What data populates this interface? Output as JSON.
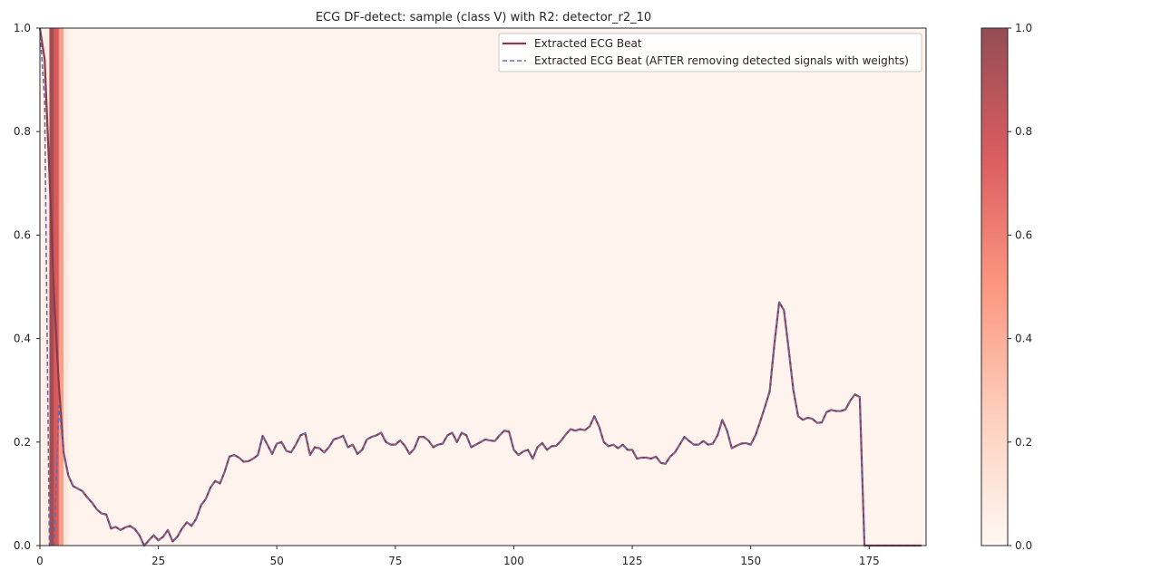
{
  "chart_data": {
    "type": "line",
    "title": "ECG DF-detect: sample (class V) with R2: detector_r2_10",
    "xlabel": "",
    "ylabel": "",
    "xlim": [
      0,
      187
    ],
    "ylim": [
      0,
      1
    ],
    "grid": false,
    "legend_position": "top-right",
    "x_ticks": [
      0,
      25,
      50,
      75,
      100,
      125,
      150,
      175
    ],
    "x_tick_labels": [
      "0",
      "25",
      "50",
      "75",
      "100",
      "125",
      "150",
      "175"
    ],
    "y_ticks": [
      0,
      0.2,
      0.4,
      0.6,
      0.8,
      1.0
    ],
    "y_tick_labels": [
      "0.0",
      "0.2",
      "0.4",
      "0.6",
      "0.8",
      "1.0"
    ],
    "series": [
      {
        "name": "Extracted ECG Beat",
        "style": "solid",
        "color": "#8b3a4a",
        "x": [
          0,
          1,
          2,
          3,
          4,
          5,
          6,
          7,
          8,
          9,
          10,
          11,
          12,
          13,
          14,
          15,
          16,
          17,
          18,
          19,
          20,
          21,
          22,
          23,
          24,
          25,
          26,
          27,
          28,
          29,
          30,
          31,
          32,
          33,
          34,
          35,
          36,
          37,
          38,
          39,
          40,
          41,
          42,
          43,
          44,
          45,
          46,
          47,
          48,
          49,
          50,
          51,
          52,
          53,
          54,
          55,
          56,
          57,
          58,
          59,
          60,
          61,
          62,
          63,
          64,
          65,
          66,
          67,
          68,
          69,
          70,
          71,
          72,
          73,
          74,
          75,
          76,
          77,
          78,
          79,
          80,
          81,
          82,
          83,
          84,
          85,
          86,
          87,
          88,
          89,
          90,
          91,
          92,
          93,
          94,
          95,
          96,
          97,
          98,
          99,
          100,
          101,
          102,
          103,
          104,
          105,
          106,
          107,
          108,
          109,
          110,
          111,
          112,
          113,
          114,
          115,
          116,
          117,
          118,
          119,
          120,
          121,
          122,
          123,
          124,
          125,
          126,
          127,
          128,
          129,
          130,
          131,
          132,
          133,
          134,
          135,
          136,
          137,
          138,
          139,
          140,
          141,
          142,
          143,
          144,
          145,
          146,
          147,
          148,
          149,
          150,
          151,
          152,
          153,
          154,
          155,
          156,
          157,
          158,
          159,
          160,
          161,
          162,
          163,
          164,
          165,
          166,
          167,
          168,
          169,
          170,
          171,
          172,
          173,
          174,
          175,
          176,
          177,
          178,
          179,
          180,
          181,
          182,
          183,
          184,
          185,
          186
        ],
        "y": [
          1.0,
          0.94,
          0.72,
          0.48,
          0.31,
          0.18,
          0.135,
          0.115,
          0.11,
          0.105,
          0.093,
          0.083,
          0.07,
          0.062,
          0.06,
          0.033,
          0.036,
          0.03,
          0.035,
          0.038,
          0.032,
          0.02,
          0.0,
          0.01,
          0.02,
          0.01,
          0.017,
          0.03,
          0.008,
          0.017,
          0.033,
          0.045,
          0.038,
          0.052,
          0.078,
          0.09,
          0.112,
          0.125,
          0.12,
          0.143,
          0.172,
          0.175,
          0.17,
          0.162,
          0.163,
          0.168,
          0.175,
          0.212,
          0.195,
          0.177,
          0.197,
          0.2,
          0.183,
          0.18,
          0.195,
          0.213,
          0.217,
          0.175,
          0.19,
          0.188,
          0.18,
          0.19,
          0.205,
          0.208,
          0.212,
          0.19,
          0.195,
          0.177,
          0.185,
          0.205,
          0.21,
          0.213,
          0.218,
          0.2,
          0.195,
          0.195,
          0.203,
          0.193,
          0.177,
          0.187,
          0.21,
          0.21,
          0.203,
          0.19,
          0.195,
          0.197,
          0.213,
          0.218,
          0.2,
          0.218,
          0.213,
          0.19,
          0.195,
          0.2,
          0.205,
          0.203,
          0.202,
          0.213,
          0.222,
          0.22,
          0.185,
          0.175,
          0.182,
          0.185,
          0.168,
          0.19,
          0.198,
          0.185,
          0.192,
          0.193,
          0.203,
          0.215,
          0.225,
          0.222,
          0.225,
          0.223,
          0.23,
          0.25,
          0.23,
          0.2,
          0.192,
          0.195,
          0.188,
          0.195,
          0.185,
          0.185,
          0.168,
          0.17,
          0.17,
          0.168,
          0.172,
          0.16,
          0.158,
          0.172,
          0.18,
          0.195,
          0.21,
          0.202,
          0.195,
          0.195,
          0.202,
          0.195,
          0.197,
          0.213,
          0.243,
          0.222,
          0.188,
          0.193,
          0.197,
          0.198,
          0.195,
          0.213,
          0.24,
          0.268,
          0.298,
          0.39,
          0.47,
          0.455,
          0.38,
          0.3,
          0.25,
          0.243,
          0.247,
          0.245,
          0.237,
          0.238,
          0.258,
          0.262,
          0.26,
          0.26,
          0.263,
          0.28,
          0.292,
          0.287,
          0.0,
          0.0,
          0.0,
          0.0,
          0.0,
          0.0,
          0.0,
          0.0,
          0.0,
          0.0,
          0.0,
          0.0,
          0.0
        ]
      },
      {
        "name": "Extracted ECG Beat (AFTER removing detected signals with weights)",
        "style": "dashed",
        "color": "#6b6aa8",
        "x": [
          0,
          1,
          2,
          3,
          4,
          5,
          6,
          7,
          8,
          9,
          10,
          11,
          12,
          13,
          14,
          15,
          16,
          17,
          18,
          19,
          20,
          21,
          22,
          23,
          24,
          25,
          26,
          27,
          28,
          29,
          30,
          31,
          32,
          33,
          34,
          35,
          36,
          37,
          38,
          39,
          40,
          41,
          42,
          43,
          44,
          45,
          46,
          47,
          48,
          49,
          50,
          51,
          52,
          53,
          54,
          55,
          56,
          57,
          58,
          59,
          60,
          61,
          62,
          63,
          64,
          65,
          66,
          67,
          68,
          69,
          70,
          71,
          72,
          73,
          74,
          75,
          76,
          77,
          78,
          79,
          80,
          81,
          82,
          83,
          84,
          85,
          86,
          87,
          88,
          89,
          90,
          91,
          92,
          93,
          94,
          95,
          96,
          97,
          98,
          99,
          100,
          101,
          102,
          103,
          104,
          105,
          106,
          107,
          108,
          109,
          110,
          111,
          112,
          113,
          114,
          115,
          116,
          117,
          118,
          119,
          120,
          121,
          122,
          123,
          124,
          125,
          126,
          127,
          128,
          129,
          130,
          131,
          132,
          133,
          134,
          135,
          136,
          137,
          138,
          139,
          140,
          141,
          142,
          143,
          144,
          145,
          146,
          147,
          148,
          149,
          150,
          151,
          152,
          153,
          154,
          155,
          156,
          157,
          158,
          159,
          160,
          161,
          162,
          163,
          164,
          165,
          166,
          167,
          168,
          169,
          170,
          171,
          172,
          173,
          174,
          175,
          176,
          177,
          178,
          179,
          180,
          181,
          182,
          183,
          184,
          185,
          186
        ],
        "y": [
          1.0,
          0.86,
          0.0,
          0.0,
          0.27,
          0.18,
          0.135,
          0.115,
          0.11,
          0.105,
          0.093,
          0.083,
          0.07,
          0.062,
          0.06,
          0.033,
          0.036,
          0.03,
          0.035,
          0.038,
          0.032,
          0.02,
          0.0,
          0.01,
          0.02,
          0.01,
          0.017,
          0.03,
          0.008,
          0.017,
          0.033,
          0.045,
          0.038,
          0.052,
          0.078,
          0.09,
          0.112,
          0.125,
          0.12,
          0.143,
          0.172,
          0.175,
          0.17,
          0.162,
          0.163,
          0.168,
          0.175,
          0.212,
          0.195,
          0.177,
          0.197,
          0.2,
          0.183,
          0.18,
          0.195,
          0.213,
          0.217,
          0.175,
          0.19,
          0.188,
          0.18,
          0.19,
          0.205,
          0.208,
          0.212,
          0.19,
          0.195,
          0.177,
          0.185,
          0.205,
          0.21,
          0.213,
          0.218,
          0.2,
          0.195,
          0.195,
          0.203,
          0.193,
          0.177,
          0.187,
          0.21,
          0.21,
          0.203,
          0.19,
          0.195,
          0.197,
          0.213,
          0.218,
          0.2,
          0.218,
          0.213,
          0.19,
          0.195,
          0.2,
          0.205,
          0.203,
          0.202,
          0.213,
          0.222,
          0.22,
          0.185,
          0.175,
          0.182,
          0.185,
          0.168,
          0.19,
          0.198,
          0.185,
          0.192,
          0.193,
          0.203,
          0.215,
          0.225,
          0.222,
          0.225,
          0.223,
          0.23,
          0.25,
          0.23,
          0.2,
          0.192,
          0.195,
          0.188,
          0.195,
          0.185,
          0.185,
          0.168,
          0.17,
          0.17,
          0.168,
          0.172,
          0.16,
          0.158,
          0.172,
          0.18,
          0.195,
          0.21,
          0.202,
          0.195,
          0.195,
          0.202,
          0.195,
          0.197,
          0.213,
          0.243,
          0.222,
          0.188,
          0.193,
          0.197,
          0.198,
          0.195,
          0.213,
          0.24,
          0.268,
          0.298,
          0.39,
          0.47,
          0.455,
          0.38,
          0.3,
          0.25,
          0.243,
          0.247,
          0.245,
          0.237,
          0.238,
          0.258,
          0.262,
          0.26,
          0.26,
          0.263,
          0.28,
          0.292,
          0.287,
          0.0,
          0.0,
          0.0,
          0.0,
          0.0,
          0.0,
          0.0,
          0.0,
          0.0,
          0.0,
          0.0,
          0.0,
          0.0
        ]
      }
    ],
    "background_weights": {
      "x": [
        0,
        1,
        2,
        3,
        4,
        5
      ],
      "weights": [
        0.02,
        0.05,
        0.95,
        0.75,
        0.45,
        0.08
      ],
      "base_weight": 0.03
    },
    "colorbar": {
      "range": [
        0,
        1
      ],
      "ticks": [
        0,
        0.2,
        0.4,
        0.6,
        0.8,
        1.0
      ],
      "tick_labels": [
        "0.0",
        "0.2",
        "0.4",
        "0.6",
        "0.8",
        "1.0"
      ],
      "colormap": "Reds",
      "colors": [
        "#fff5f0",
        "#fcbba1",
        "#fb6a4a",
        "#cb181d",
        "#67000d"
      ],
      "alpha": 0.7
    }
  }
}
